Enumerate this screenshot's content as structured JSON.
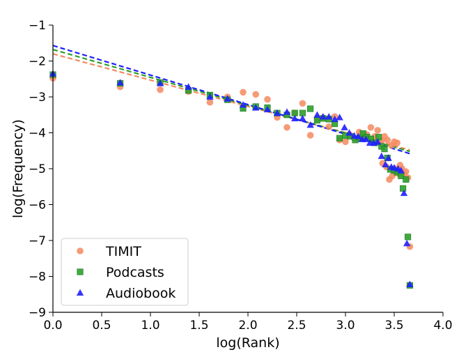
{
  "chart_data": {
    "type": "scatter",
    "xlabel": "log(Rank)",
    "ylabel": "log(Frequency)",
    "xlim": [
      0.0,
      4.0
    ],
    "ylim": [
      -9,
      -1
    ],
    "xticks": [
      "0.0",
      "0.5",
      "1.0",
      "1.5",
      "2.0",
      "2.5",
      "3.0",
      "3.5",
      "4.0"
    ],
    "yticks": [
      "−1",
      "−2",
      "−3",
      "−4",
      "−5",
      "−6",
      "−7",
      "−8",
      "−9"
    ],
    "legend_position": "lower-left",
    "series": [
      {
        "name": "TIMIT",
        "marker": "circle",
        "color": "#f4895f",
        "fit": {
          "x": [
            0.0,
            3.66
          ],
          "y": [
            -1.8,
            -4.48
          ]
        },
        "points": [
          [
            0.0,
            -2.48
          ],
          [
            0.69,
            -2.72
          ],
          [
            1.1,
            -2.8
          ],
          [
            1.39,
            -2.85
          ],
          [
            1.61,
            -3.15
          ],
          [
            1.79,
            -3.0
          ],
          [
            1.95,
            -2.87
          ],
          [
            2.08,
            -2.93
          ],
          [
            2.2,
            -3.07
          ],
          [
            2.3,
            -3.57
          ],
          [
            2.4,
            -3.85
          ],
          [
            2.48,
            -3.45
          ],
          [
            2.56,
            -3.18
          ],
          [
            2.64,
            -4.07
          ],
          [
            2.71,
            -3.6
          ],
          [
            2.77,
            -3.58
          ],
          [
            2.83,
            -3.83
          ],
          [
            2.89,
            -3.55
          ],
          [
            2.94,
            -4.2
          ],
          [
            3.0,
            -4.25
          ],
          [
            3.04,
            -4.05
          ],
          [
            3.09,
            -4.15
          ],
          [
            3.14,
            -3.98
          ],
          [
            3.18,
            -4.08
          ],
          [
            3.22,
            -4.05
          ],
          [
            3.26,
            -3.85
          ],
          [
            3.3,
            -4.1
          ],
          [
            3.33,
            -3.93
          ],
          [
            3.37,
            -4.22
          ],
          [
            3.4,
            -4.1
          ],
          [
            3.43,
            -4.2
          ],
          [
            3.47,
            -4.35
          ],
          [
            3.5,
            -4.25
          ],
          [
            3.53,
            -4.28
          ],
          [
            3.56,
            -4.9
          ],
          [
            3.38,
            -4.85
          ],
          [
            3.42,
            -4.95
          ],
          [
            3.45,
            -5.3
          ],
          [
            3.48,
            -5.2
          ],
          [
            3.51,
            -5.0
          ],
          [
            3.55,
            -5.15
          ],
          [
            3.58,
            -5.0
          ],
          [
            3.6,
            -5.12
          ],
          [
            3.62,
            -5.08
          ],
          [
            3.64,
            -5.25
          ],
          [
            3.66,
            -7.17
          ]
        ]
      },
      {
        "name": "Podcasts",
        "marker": "square",
        "color": "#2ca02c",
        "fit": {
          "x": [
            0.0,
            3.66
          ],
          "y": [
            -1.68,
            -4.52
          ]
        },
        "points": [
          [
            0.0,
            -2.38
          ],
          [
            0.69,
            -2.62
          ],
          [
            1.1,
            -2.6
          ],
          [
            1.39,
            -2.82
          ],
          [
            1.61,
            -2.95
          ],
          [
            1.79,
            -3.08
          ],
          [
            1.95,
            -3.32
          ],
          [
            2.08,
            -3.27
          ],
          [
            2.2,
            -3.3
          ],
          [
            2.3,
            -3.45
          ],
          [
            2.4,
            -3.5
          ],
          [
            2.48,
            -3.45
          ],
          [
            2.56,
            -3.45
          ],
          [
            2.64,
            -3.33
          ],
          [
            2.71,
            -3.65
          ],
          [
            2.77,
            -3.6
          ],
          [
            2.83,
            -3.62
          ],
          [
            2.89,
            -3.75
          ],
          [
            2.94,
            -4.15
          ],
          [
            3.0,
            -4.08
          ],
          [
            3.05,
            -4.1
          ],
          [
            3.1,
            -4.2
          ],
          [
            3.15,
            -4.15
          ],
          [
            3.18,
            -4.02
          ],
          [
            3.22,
            -4.12
          ],
          [
            3.26,
            -4.17
          ],
          [
            3.3,
            -4.28
          ],
          [
            3.34,
            -4.12
          ],
          [
            3.37,
            -4.38
          ],
          [
            3.4,
            -4.45
          ],
          [
            3.43,
            -4.7
          ],
          [
            3.46,
            -5.02
          ],
          [
            3.5,
            -5.05
          ],
          [
            3.53,
            -5.1
          ],
          [
            3.57,
            -5.2
          ],
          [
            3.59,
            -5.55
          ],
          [
            3.62,
            -5.3
          ],
          [
            3.64,
            -6.9
          ],
          [
            3.66,
            -8.25
          ]
        ]
      },
      {
        "name": "Audiobook",
        "marker": "triangle",
        "color": "#1f1fff",
        "fit": {
          "x": [
            0.0,
            3.66
          ],
          "y": [
            -1.57,
            -4.58
          ]
        },
        "points": [
          [
            0.0,
            -2.35
          ],
          [
            0.69,
            -2.6
          ],
          [
            1.1,
            -2.62
          ],
          [
            1.39,
            -2.72
          ],
          [
            1.61,
            -3.0
          ],
          [
            1.79,
            -3.05
          ],
          [
            1.95,
            -3.22
          ],
          [
            2.08,
            -3.3
          ],
          [
            2.2,
            -3.35
          ],
          [
            2.3,
            -3.45
          ],
          [
            2.4,
            -3.42
          ],
          [
            2.48,
            -3.6
          ],
          [
            2.56,
            -3.6
          ],
          [
            2.64,
            -3.78
          ],
          [
            2.71,
            -3.5
          ],
          [
            2.77,
            -3.55
          ],
          [
            2.83,
            -3.55
          ],
          [
            2.89,
            -3.62
          ],
          [
            2.94,
            -3.57
          ],
          [
            2.99,
            -3.85
          ],
          [
            3.04,
            -4.0
          ],
          [
            3.09,
            -4.08
          ],
          [
            3.13,
            -4.1
          ],
          [
            3.17,
            -4.18
          ],
          [
            3.21,
            -4.18
          ],
          [
            3.25,
            -4.28
          ],
          [
            3.29,
            -4.28
          ],
          [
            3.33,
            -4.25
          ],
          [
            3.37,
            -4.65
          ],
          [
            3.41,
            -4.88
          ],
          [
            3.44,
            -4.7
          ],
          [
            3.47,
            -4.95
          ],
          [
            3.5,
            -4.97
          ],
          [
            3.54,
            -5.0
          ],
          [
            3.57,
            -5.05
          ],
          [
            3.6,
            -5.68
          ],
          [
            3.63,
            -7.08
          ],
          [
            3.66,
            -8.22
          ]
        ]
      }
    ]
  }
}
